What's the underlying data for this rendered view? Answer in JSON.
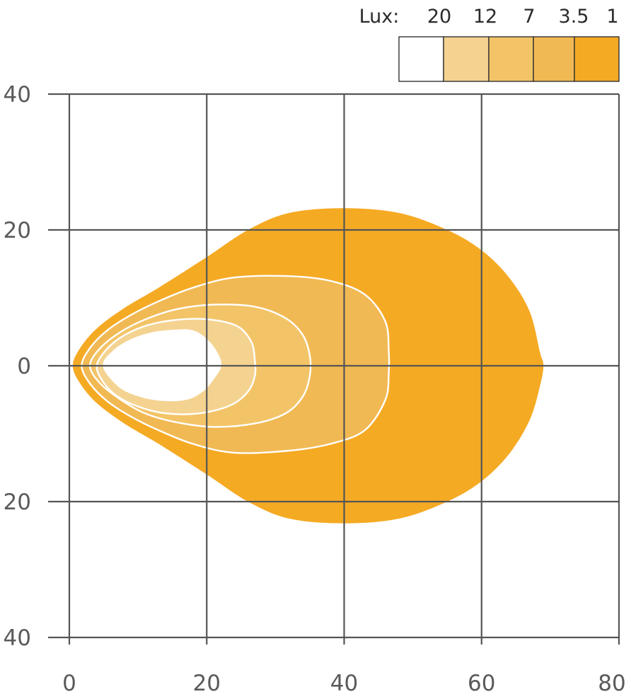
{
  "chart_data": {
    "type": "area",
    "x_ticks": [
      "0",
      "20",
      "40",
      "60",
      "80"
    ],
    "y_ticks": [
      "40",
      "20",
      "0",
      "20",
      "40"
    ],
    "xlim": [
      0,
      80
    ],
    "ylim": [
      -40,
      40
    ],
    "grid": true,
    "legend": {
      "placement": "top-right",
      "title": "Lux:",
      "levels": [
        "20",
        "12",
        "7",
        "3.5",
        "1"
      ],
      "colors": [
        "#ffffff",
        "#f4d391",
        "#f3c467",
        "#f1b953",
        "#f5aa24"
      ]
    },
    "isolux_contours": [
      {
        "level": "1",
        "color": "#f5aa24",
        "points": [
          [
            0.5,
            0
          ],
          [
            1.5,
            2.5
          ],
          [
            4,
            5.5
          ],
          [
            8,
            8.5
          ],
          [
            13,
            11.5
          ],
          [
            20,
            16
          ],
          [
            26,
            20
          ],
          [
            32,
            22.5
          ],
          [
            40,
            23.2
          ],
          [
            48,
            22.5
          ],
          [
            55,
            20
          ],
          [
            60,
            17
          ],
          [
            64,
            13
          ],
          [
            67,
            8
          ],
          [
            68.5,
            2
          ],
          [
            69,
            0
          ],
          [
            68.5,
            -3
          ],
          [
            67,
            -8
          ],
          [
            64,
            -13
          ],
          [
            60,
            -17
          ],
          [
            55,
            -20
          ],
          [
            48,
            -22.5
          ],
          [
            40,
            -23.2
          ],
          [
            32,
            -22.5
          ],
          [
            26,
            -20
          ],
          [
            20,
            -16
          ],
          [
            13,
            -11.5
          ],
          [
            8,
            -8.5
          ],
          [
            4,
            -5.5
          ],
          [
            1.5,
            -2.5
          ]
        ]
      },
      {
        "level": "3.5",
        "color": "#f1b953",
        "points": [
          [
            1.8,
            0
          ],
          [
            3,
            2.6
          ],
          [
            5.5,
            5.2
          ],
          [
            9,
            7.5
          ],
          [
            13,
            9.5
          ],
          [
            18,
            11.5
          ],
          [
            24,
            13
          ],
          [
            32,
            13.2
          ],
          [
            38,
            12.5
          ],
          [
            43,
            10.5
          ],
          [
            46,
            6.5
          ],
          [
            46.5,
            2
          ],
          [
            46.5,
            -1
          ],
          [
            46,
            -5
          ],
          [
            43,
            -9.5
          ],
          [
            38,
            -11.5
          ],
          [
            32,
            -12.5
          ],
          [
            24,
            -12.8
          ],
          [
            18,
            -11.5
          ],
          [
            13,
            -9.5
          ],
          [
            9,
            -7.5
          ],
          [
            5.5,
            -5.2
          ],
          [
            3,
            -2.6
          ]
        ]
      },
      {
        "level": "7",
        "color": "#f3c467",
        "points": [
          [
            3,
            0
          ],
          [
            4.5,
            2.6
          ],
          [
            7.5,
            5
          ],
          [
            11,
            6.8
          ],
          [
            15.5,
            8.3
          ],
          [
            21,
            9
          ],
          [
            27,
            8.7
          ],
          [
            31.5,
            7
          ],
          [
            34,
            4.5
          ],
          [
            35,
            1.5
          ],
          [
            35,
            -1.5
          ],
          [
            34,
            -4.5
          ],
          [
            31.5,
            -7
          ],
          [
            27,
            -8.5
          ],
          [
            21,
            -9
          ],
          [
            15.5,
            -8.3
          ],
          [
            11,
            -7
          ],
          [
            7.5,
            -5
          ],
          [
            4.5,
            -2.6
          ]
        ]
      },
      {
        "level": "12",
        "color": "#f4d391",
        "points": [
          [
            4,
            0
          ],
          [
            5.5,
            2.5
          ],
          [
            8,
            4.5
          ],
          [
            11.5,
            6
          ],
          [
            16,
            6.8
          ],
          [
            20.5,
            6.8
          ],
          [
            24.5,
            5.8
          ],
          [
            26.5,
            3.5
          ],
          [
            27,
            0.8
          ],
          [
            27,
            -1.5
          ],
          [
            26,
            -3.8
          ],
          [
            23.5,
            -5.8
          ],
          [
            19,
            -7
          ],
          [
            14,
            -7
          ],
          [
            10,
            -6
          ],
          [
            7,
            -4.5
          ],
          [
            5,
            -2.5
          ]
        ]
      },
      {
        "level": "20",
        "color": "#ffffff",
        "points": [
          [
            5,
            0
          ],
          [
            6.5,
            2.2
          ],
          [
            9,
            3.8
          ],
          [
            12,
            4.8
          ],
          [
            15.5,
            5.2
          ],
          [
            18,
            5.1
          ],
          [
            20,
            3.8
          ],
          [
            21.5,
            1.8
          ],
          [
            22,
            0
          ],
          [
            21,
            -1.8
          ],
          [
            19.5,
            -3.6
          ],
          [
            17,
            -4.9
          ],
          [
            13,
            -5
          ],
          [
            9.5,
            -4.2
          ],
          [
            7,
            -2.8
          ]
        ]
      }
    ]
  }
}
